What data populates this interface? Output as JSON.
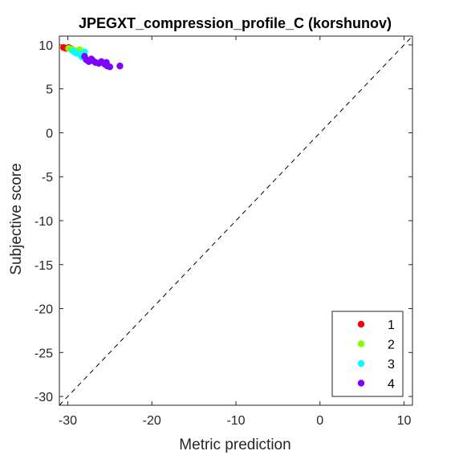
{
  "chart_data": {
    "type": "scatter",
    "title": "JPEGXT_compression_profile_C (korshunov)",
    "xlabel": "Metric prediction",
    "ylabel": "Subjective score",
    "xlim": [
      -31,
      11
    ],
    "ylim": [
      -31,
      11
    ],
    "xticks": [
      -30,
      -20,
      -10,
      0,
      10
    ],
    "yticks": [
      10,
      5,
      0,
      -5,
      -10,
      -15,
      -20,
      -25,
      -30
    ],
    "grid": false,
    "reference_line": "y = x (dashed)",
    "legend_position": "bottom-right",
    "series": [
      {
        "name": "1",
        "color": "#ff0000",
        "points": [
          [
            -30.5,
            9.7
          ],
          [
            -30.2,
            9.6
          ],
          [
            -29.9,
            9.7
          ],
          [
            -29.6,
            9.55
          ]
        ]
      },
      {
        "name": "2",
        "color": "#80ff00",
        "points": [
          [
            -29.9,
            9.6
          ],
          [
            -29.6,
            9.5
          ],
          [
            -29.3,
            9.4
          ],
          [
            -29.0,
            9.3
          ],
          [
            -28.8,
            9.2
          ],
          [
            -28.6,
            9.45
          ]
        ]
      },
      {
        "name": "3",
        "color": "#00ffff",
        "points": [
          [
            -29.4,
            9.3
          ],
          [
            -29.1,
            9.1
          ],
          [
            -28.8,
            9.0
          ],
          [
            -28.5,
            8.9
          ],
          [
            -28.2,
            8.8
          ],
          [
            -28.0,
            9.2
          ],
          [
            -28.3,
            8.6
          ]
        ]
      },
      {
        "name": "4",
        "color": "#8000ff",
        "points": [
          [
            -28.0,
            8.7
          ],
          [
            -27.8,
            8.3
          ],
          [
            -27.5,
            8.1
          ],
          [
            -27.2,
            8.4
          ],
          [
            -27.0,
            8.2
          ],
          [
            -26.7,
            8.0
          ],
          [
            -26.3,
            7.9
          ],
          [
            -26.0,
            8.1
          ],
          [
            -25.6,
            7.8
          ],
          [
            -25.3,
            7.6
          ],
          [
            -25.0,
            7.5
          ],
          [
            -25.4,
            8.0
          ],
          [
            -23.8,
            7.6
          ]
        ]
      }
    ]
  }
}
